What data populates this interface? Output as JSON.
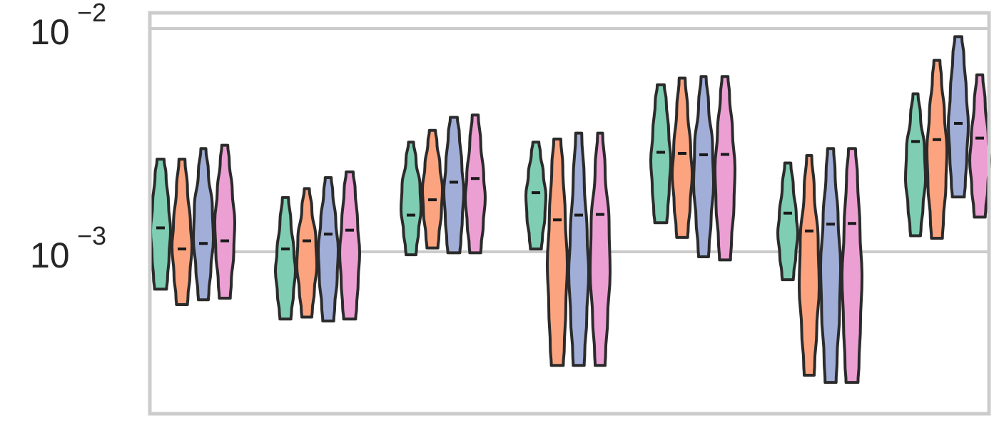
{
  "chart_data": {
    "type": "violin",
    "title": "",
    "xlabel": "",
    "ylabel": "",
    "yscale": "log",
    "ylim": [
      0.00026,
      0.0106
    ],
    "grid": true,
    "legend": "none",
    "y_ticks": [
      {
        "value": 0.01,
        "base": "10",
        "exponent": "−2"
      },
      {
        "value": 0.001,
        "base": "10",
        "exponent": "−3"
      }
    ],
    "series_colors": [
      "#7fcdb3",
      "#fca47f",
      "#a1aed8",
      "#ec9fd3"
    ],
    "groups": [
      {
        "violins": [
          {
            "min": 0.00068,
            "max": 0.0026,
            "median": 0.00128
          },
          {
            "min": 0.00058,
            "max": 0.0026,
            "median": 0.00103
          },
          {
            "min": 0.00061,
            "max": 0.0029,
            "median": 0.00109
          },
          {
            "min": 0.00062,
            "max": 0.003,
            "median": 0.00112
          }
        ]
      },
      {
        "violins": [
          {
            "min": 0.0005,
            "max": 0.00175,
            "median": 0.00103
          },
          {
            "min": 0.00051,
            "max": 0.00192,
            "median": 0.00112
          },
          {
            "min": 0.00049,
            "max": 0.00215,
            "median": 0.0012
          },
          {
            "min": 0.0005,
            "max": 0.00228,
            "median": 0.00125
          }
        ]
      },
      {
        "violins": [
          {
            "min": 0.00097,
            "max": 0.0031,
            "median": 0.00146
          },
          {
            "min": 0.00104,
            "max": 0.0035,
            "median": 0.00171
          },
          {
            "min": 0.00099,
            "max": 0.004,
            "median": 0.00205
          },
          {
            "min": 0.00099,
            "max": 0.0041,
            "median": 0.00213
          }
        ]
      },
      {
        "violins": [
          {
            "min": 0.00103,
            "max": 0.0031,
            "median": 0.00184
          },
          {
            "min": 0.00031,
            "max": 0.0032,
            "median": 0.00139
          },
          {
            "min": 0.00031,
            "max": 0.0034,
            "median": 0.00146
          },
          {
            "min": 0.00031,
            "max": 0.0034,
            "median": 0.00147
          }
        ]
      },
      {
        "violins": [
          {
            "min": 0.00135,
            "max": 0.0056,
            "median": 0.00279
          },
          {
            "min": 0.00116,
            "max": 0.006,
            "median": 0.00276
          },
          {
            "min": 0.00095,
            "max": 0.0061,
            "median": 0.00272
          },
          {
            "min": 0.00092,
            "max": 0.0061,
            "median": 0.00273
          }
        ]
      },
      {
        "violins": [
          {
            "min": 0.00075,
            "max": 0.0025,
            "median": 0.00149
          },
          {
            "min": 0.00028,
            "max": 0.0027,
            "median": 0.00124
          },
          {
            "min": 0.00026,
            "max": 0.0029,
            "median": 0.00133
          },
          {
            "min": 0.00026,
            "max": 0.0029,
            "median": 0.00134
          }
        ]
      },
      {
        "violins": [
          {
            "min": 0.00118,
            "max": 0.0051,
            "median": 0.00312
          },
          {
            "min": 0.00115,
            "max": 0.0072,
            "median": 0.00318
          },
          {
            "min": 0.00176,
            "max": 0.0092,
            "median": 0.00376
          },
          {
            "min": 0.00143,
            "max": 0.0062,
            "median": 0.00323
          }
        ]
      }
    ]
  }
}
